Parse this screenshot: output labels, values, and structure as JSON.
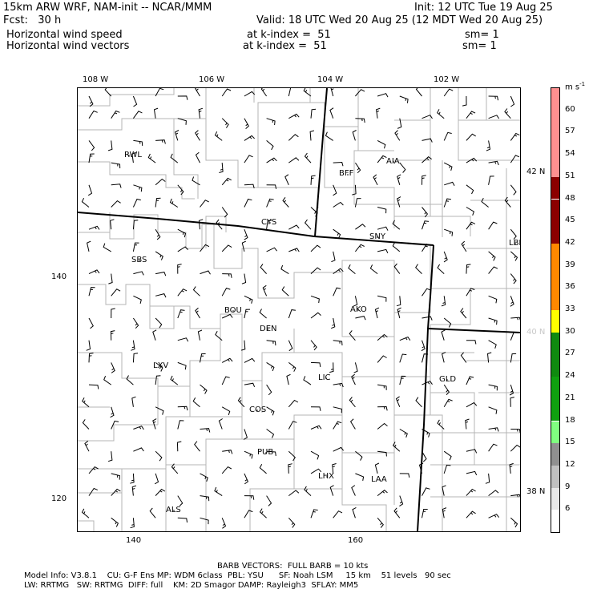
{
  "header": {
    "line1_left": "15km ARW WRF, NAM-init -- NCAR/MMM",
    "line1_right": "Init: 12 UTC Tue 19 Aug 25",
    "line2_left": "Fcst:   30 h",
    "line2_right": "Valid: 18 UTC Wed 20 Aug 25 (12 MDT Wed 20 Aug 25)",
    "field1_name": "Horizontal wind speed",
    "field1_level": "at k-index =  51",
    "field1_sm": "sm= 1",
    "field2_name": "Horizontal wind vectors",
    "field2_level": "at k-index =  51",
    "field2_sm": "sm= 1"
  },
  "map": {
    "lon_labels": [
      "108 W",
      "106 W",
      "104 W",
      "102 W"
    ],
    "lat_labels": [
      "42 N",
      "40 N",
      "38 N"
    ],
    "grid_left_labels": [
      "140",
      "120"
    ],
    "grid_bottom_labels": [
      "140",
      "160"
    ],
    "stations": [
      "RWL",
      "BFF",
      "AIA",
      "CYS",
      "SNY",
      "LBF",
      "SBS",
      "BOU",
      "AKO",
      "DEN",
      "LXV",
      "LIC",
      "GLD",
      "COS",
      "PUB",
      "LHX",
      "LAA",
      "ALS"
    ]
  },
  "colorbar": {
    "unit": "m s",
    "unit_exp": "-1",
    "labels": [
      "6",
      "9",
      "12",
      "15",
      "18",
      "21",
      "24",
      "27",
      "30",
      "33",
      "36",
      "39",
      "42",
      "45",
      "48",
      "51",
      "54",
      "57",
      "60"
    ],
    "colors": [
      "#ffffff",
      "#e8e8e8",
      "#c0c0c0",
      "#909090",
      "#80ff80",
      "#10a010",
      "#10a010",
      "#108a10",
      "#108a10",
      "#ffff00",
      "#ff8800",
      "#ff8800",
      "#ff8800",
      "#8b0000",
      "#8b0000",
      "#8b0000",
      "#ff9090",
      "#ff9090",
      "#ff9090",
      "#ff9090"
    ]
  },
  "footer": {
    "barb_note": "BARB VECTORS:  FULL BARB = 10 kts",
    "model_line1": "Model Info: V3.8.1    CU: G-F Ens MP: WDM 6class  PBL: YSU      SF: Noah LSM     15 km    51 levels   90 sec",
    "model_line2": "LW: RRTMG   SW: RRTMG  DIFF: full    KM: 2D Smagor DAMP: Rayleigh3  SFLAY: MM5"
  }
}
